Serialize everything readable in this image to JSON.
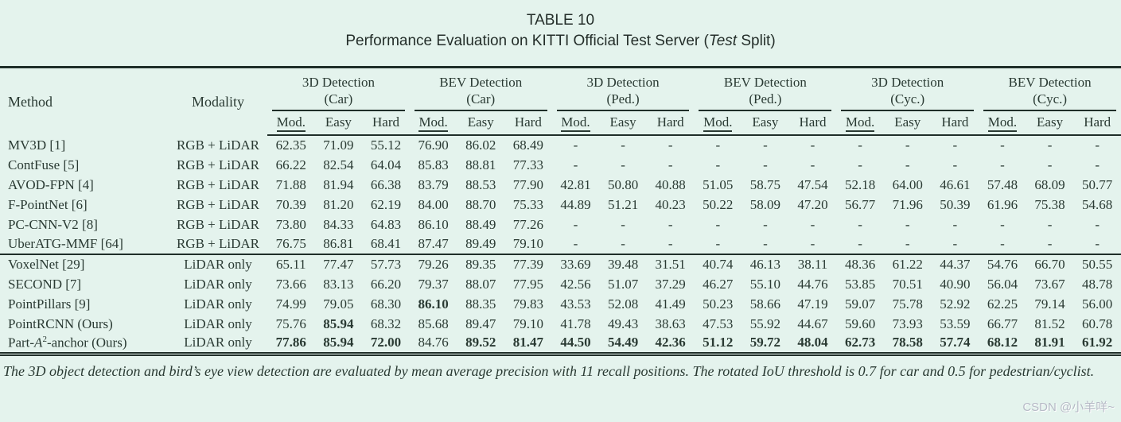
{
  "title": {
    "line1": "TABLE 10",
    "line2_prefix": "Performance Evaluation on KITTI Official Test Server (",
    "line2_italic": "Test",
    "line2_suffix": " Split)"
  },
  "table": {
    "method_header": "Method",
    "modality_header": "Modality",
    "groups": [
      {
        "title": "3D Detection",
        "subtitle": "(Car)"
      },
      {
        "title": "BEV Detection",
        "subtitle": "(Car)"
      },
      {
        "title": "3D Detection",
        "subtitle": "(Ped.)"
      },
      {
        "title": "BEV Detection",
        "subtitle": "(Ped.)"
      },
      {
        "title": "3D Detection",
        "subtitle": "(Cyc.)"
      },
      {
        "title": "BEV Detection",
        "subtitle": "(Cyc.)"
      }
    ],
    "subcolumns": [
      "Mod.",
      "Easy",
      "Hard"
    ],
    "row_groups": [
      {
        "rows": [
          {
            "method": "MV3D [1]",
            "modality": "RGB + LiDAR",
            "values": [
              "62.35",
              "71.09",
              "55.12",
              "76.90",
              "86.02",
              "68.49",
              "-",
              "-",
              "-",
              "-",
              "-",
              "-",
              "-",
              "-",
              "-",
              "-",
              "-",
              "-"
            ],
            "bold": []
          },
          {
            "method": "ContFuse [5]",
            "modality": "RGB + LiDAR",
            "values": [
              "66.22",
              "82.54",
              "64.04",
              "85.83",
              "88.81",
              "77.33",
              "-",
              "-",
              "-",
              "-",
              "-",
              "-",
              "-",
              "-",
              "-",
              "-",
              "-",
              "-"
            ],
            "bold": []
          },
          {
            "method": "AVOD-FPN [4]",
            "modality": "RGB + LiDAR",
            "values": [
              "71.88",
              "81.94",
              "66.38",
              "83.79",
              "88.53",
              "77.90",
              "42.81",
              "50.80",
              "40.88",
              "51.05",
              "58.75",
              "47.54",
              "52.18",
              "64.00",
              "46.61",
              "57.48",
              "68.09",
              "50.77"
            ],
            "bold": []
          },
          {
            "method": "F-PointNet [6]",
            "modality": "RGB + LiDAR",
            "values": [
              "70.39",
              "81.20",
              "62.19",
              "84.00",
              "88.70",
              "75.33",
              "44.89",
              "51.21",
              "40.23",
              "50.22",
              "58.09",
              "47.20",
              "56.77",
              "71.96",
              "50.39",
              "61.96",
              "75.38",
              "54.68"
            ],
            "bold": []
          },
          {
            "method": "PC-CNN-V2 [8]",
            "modality": "RGB + LiDAR",
            "values": [
              "73.80",
              "84.33",
              "64.83",
              "86.10",
              "88.49",
              "77.26",
              "-",
              "-",
              "-",
              "-",
              "-",
              "-",
              "-",
              "-",
              "-",
              "-",
              "-",
              "-"
            ],
            "bold": []
          },
          {
            "method": "UberATG-MMF [64]",
            "modality": "RGB + LiDAR",
            "values": [
              "76.75",
              "86.81",
              "68.41",
              "87.47",
              "89.49",
              "79.10",
              "-",
              "-",
              "-",
              "-",
              "-",
              "-",
              "-",
              "-",
              "-",
              "-",
              "-",
              "-"
            ],
            "bold": []
          }
        ]
      },
      {
        "rows": [
          {
            "method": "VoxelNet [29]",
            "modality": "LiDAR only",
            "values": [
              "65.11",
              "77.47",
              "57.73",
              "79.26",
              "89.35",
              "77.39",
              "33.69",
              "39.48",
              "31.51",
              "40.74",
              "46.13",
              "38.11",
              "48.36",
              "61.22",
              "44.37",
              "54.76",
              "66.70",
              "50.55"
            ],
            "bold": []
          },
          {
            "method": "SECOND [7]",
            "modality": "LiDAR only",
            "values": [
              "73.66",
              "83.13",
              "66.20",
              "79.37",
              "88.07",
              "77.95",
              "42.56",
              "51.07",
              "37.29",
              "46.27",
              "55.10",
              "44.76",
              "53.85",
              "70.51",
              "40.90",
              "56.04",
              "73.67",
              "48.78"
            ],
            "bold": []
          },
          {
            "method": "PointPillars [9]",
            "modality": "LiDAR only",
            "values": [
              "74.99",
              "79.05",
              "68.30",
              "86.10",
              "88.35",
              "79.83",
              "43.53",
              "52.08",
              "41.49",
              "50.23",
              "58.66",
              "47.19",
              "59.07",
              "75.78",
              "52.92",
              "62.25",
              "79.14",
              "56.00"
            ],
            "bold": [
              3
            ]
          },
          {
            "method": "PointRCNN (Ours)",
            "modality": "LiDAR only",
            "values": [
              "75.76",
              "85.94",
              "68.32",
              "85.68",
              "89.47",
              "79.10",
              "41.78",
              "49.43",
              "38.63",
              "47.53",
              "55.92",
              "44.67",
              "59.60",
              "73.93",
              "53.59",
              "66.77",
              "81.52",
              "60.78"
            ],
            "bold": [
              1
            ]
          },
          {
            "method": "Part-A²-anchor (Ours)",
            "modality": "LiDAR only",
            "values": [
              "77.86",
              "85.94",
              "72.00",
              "84.76",
              "89.52",
              "81.47",
              "44.50",
              "54.49",
              "42.36",
              "51.12",
              "59.72",
              "48.04",
              "62.73",
              "78.58",
              "57.74",
              "68.12",
              "81.91",
              "61.92"
            ],
            "bold": [
              0,
              1,
              2,
              4,
              5,
              6,
              7,
              8,
              9,
              10,
              11,
              12,
              13,
              14,
              15,
              16,
              17
            ]
          }
        ]
      }
    ]
  },
  "footnote": "The 3D object detection and bird’s eye view detection are evaluated by mean average precision with 11 recall positions. The rotated IoU threshold is 0.7 for car and 0.5 for pedestrian/cyclist.",
  "watermark": "CSDN @小羊咩~",
  "colors": {
    "background": "#e4f3ed",
    "text": "#2a3a33",
    "rule": "#1f2e29",
    "watermark": "#b6bac6"
  }
}
